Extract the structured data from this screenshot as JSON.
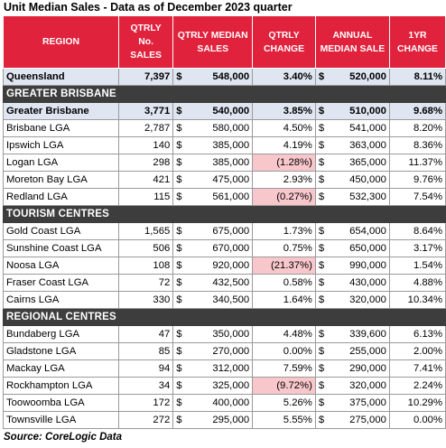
{
  "title": "Unit Median Sales - Data as of December 2023 quarter",
  "headers": [
    "REGION",
    "QTRLY No. SALES",
    "QTRLY MEDIAN SALES",
    "QTRLY CHANGE",
    "ANNUAL MEDIAN SALE",
    "1YR CHANGE"
  ],
  "currency": "$",
  "rows": [
    {
      "type": "highlight",
      "region": "Queensland",
      "sales": "7,397",
      "median": "548,000",
      "qchange": "3.40%",
      "annual": "520,000",
      "ychange": "8.11%",
      "neg": false
    },
    {
      "type": "section",
      "region": "GREATER BRISBANE"
    },
    {
      "type": "highlight",
      "region": "Greater Brisbane",
      "sales": "3,771",
      "median": "540,000",
      "qchange": "3.85%",
      "annual": "510,000",
      "ychange": "9.68%",
      "neg": false
    },
    {
      "type": "row",
      "region": "Brisbane LGA",
      "sales": "2,787",
      "median": "580,000",
      "qchange": "4.50%",
      "annual": "541,000",
      "ychange": "8.20%",
      "neg": false
    },
    {
      "type": "row",
      "region": "Ipswich LGA",
      "sales": "140",
      "median": "385,000",
      "qchange": "4.19%",
      "annual": "363,000",
      "ychange": "8.36%",
      "neg": false
    },
    {
      "type": "row",
      "region": "Logan LGA",
      "sales": "298",
      "median": "385,000",
      "qchange": "(1.28%)",
      "annual": "365,000",
      "ychange": "11.37%",
      "neg": true
    },
    {
      "type": "row",
      "region": "Moreton Bay LGA",
      "sales": "421",
      "median": "475,000",
      "qchange": "2.93%",
      "annual": "450,000",
      "ychange": "9.76%",
      "neg": false
    },
    {
      "type": "row",
      "region": "Redland LGA",
      "sales": "115",
      "median": "561,000",
      "qchange": "(0.27%)",
      "annual": "532,300",
      "ychange": "7.54%",
      "neg": true
    },
    {
      "type": "section",
      "region": "TOURISM CENTRES"
    },
    {
      "type": "row",
      "region": "Gold Coast LGA",
      "sales": "1,565",
      "median": "675,000",
      "qchange": "1.73%",
      "annual": "654,000",
      "ychange": "8.64%",
      "neg": false
    },
    {
      "type": "row",
      "region": "Sunshine Coast LGA",
      "sales": "506",
      "median": "670,000",
      "qchange": "0.75%",
      "annual": "650,000",
      "ychange": "3.17%",
      "neg": false
    },
    {
      "type": "row",
      "region": "Noosa LGA",
      "sales": "108",
      "median": "920,000",
      "qchange": "(21.37%)",
      "annual": "990,000",
      "ychange": "1.54%",
      "neg": true
    },
    {
      "type": "row",
      "region": "Fraser Coast LGA",
      "sales": "72",
      "median": "432,500",
      "qchange": "0.58%",
      "annual": "430,000",
      "ychange": "4.88%",
      "neg": false
    },
    {
      "type": "row",
      "region": "Cairns LGA",
      "sales": "330",
      "median": "340,500",
      "qchange": "1.64%",
      "annual": "320,000",
      "ychange": "10.34%",
      "neg": false
    },
    {
      "type": "section",
      "region": "REGIONAL CENTRES"
    },
    {
      "type": "row",
      "region": "Bundaberg LGA",
      "sales": "47",
      "median": "350,000",
      "qchange": "4.48%",
      "annual": "339,600",
      "ychange": "6.13%",
      "neg": false
    },
    {
      "type": "row",
      "region": "Gladstone LGA",
      "sales": "85",
      "median": "270,000",
      "qchange": "0.00%",
      "annual": "255,000",
      "ychange": "2.00%",
      "neg": false
    },
    {
      "type": "row",
      "region": "Mackay LGA",
      "sales": "94",
      "median": "312,000",
      "qchange": "7.59%",
      "annual": "290,000",
      "ychange": "7.41%",
      "neg": false
    },
    {
      "type": "row",
      "region": "Rockhampton LGA",
      "sales": "34",
      "median": "325,000",
      "qchange": "(9.72%)",
      "annual": "320,000",
      "ychange": "2.24%",
      "neg": true
    },
    {
      "type": "row",
      "region": "Toowoomba LGA",
      "sales": "172",
      "median": "400,000",
      "qchange": "5.26%",
      "annual": "375,000",
      "ychange": "10.29%",
      "neg": false
    },
    {
      "type": "row",
      "region": "Townsville LGA",
      "sales": "272",
      "median": "295,000",
      "qchange": "5.55%",
      "annual": "275,000",
      "ychange": "0.00%",
      "neg": false
    }
  ],
  "source": "Source: CoreLogic Data"
}
